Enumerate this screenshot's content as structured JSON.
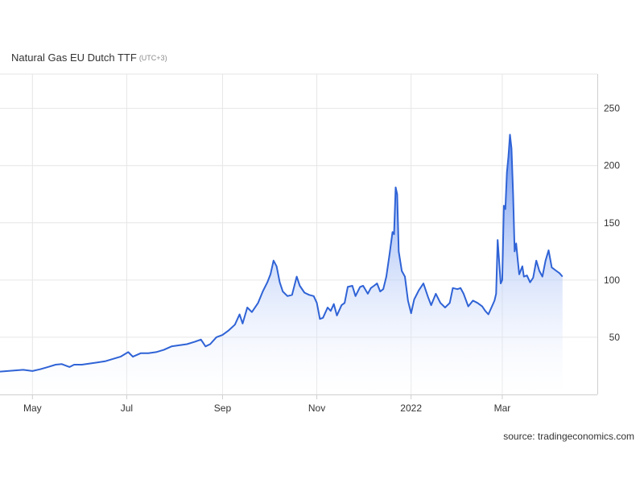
{
  "header": {
    "title": "Natural Gas EU Dutch TTF",
    "timezone": "(UTC+3)"
  },
  "footer": {
    "source": "source: tradingeconomics.com"
  },
  "colors": {
    "line": "#2f63d6",
    "fill_top": "#5b88ee",
    "fill_bottom": "#ffffff",
    "grid": "#e6e6e6"
  },
  "chart_data": {
    "type": "area",
    "title": "Natural Gas EU Dutch TTF",
    "xlabel": "",
    "ylabel": "",
    "ylim": [
      0,
      280
    ],
    "y_ticks": [
      50,
      100,
      150,
      200,
      250
    ],
    "x_ticks": [
      "May",
      "Jul",
      "Sep",
      "Nov",
      "2022",
      "Mar"
    ],
    "x_tick_dates": [
      "2021-05-01",
      "2021-07-01",
      "2021-09-01",
      "2021-11-01",
      "2022-01-01",
      "2022-03-01"
    ],
    "xlim": [
      "2021-04-10",
      "2022-04-19"
    ],
    "grid": true,
    "series": [
      {
        "points": [
          [
            "2021-04-10",
            20
          ],
          [
            "2021-04-20",
            21
          ],
          [
            "2021-04-25",
            21.5
          ],
          [
            "2021-05-01",
            20.5
          ],
          [
            "2021-05-06",
            22
          ],
          [
            "2021-05-11",
            24
          ],
          [
            "2021-05-16",
            26
          ],
          [
            "2021-05-20",
            26.5
          ],
          [
            "2021-05-25",
            24
          ],
          [
            "2021-05-28",
            26
          ],
          [
            "2021-06-02",
            26
          ],
          [
            "2021-06-07",
            27
          ],
          [
            "2021-06-12",
            28
          ],
          [
            "2021-06-17",
            29
          ],
          [
            "2021-06-22",
            31
          ],
          [
            "2021-06-27",
            33
          ],
          [
            "2021-07-02",
            37
          ],
          [
            "2021-07-05",
            33
          ],
          [
            "2021-07-10",
            36
          ],
          [
            "2021-07-15",
            36
          ],
          [
            "2021-07-20",
            37
          ],
          [
            "2021-07-25",
            39
          ],
          [
            "2021-07-30",
            42
          ],
          [
            "2021-08-04",
            43
          ],
          [
            "2021-08-09",
            44
          ],
          [
            "2021-08-14",
            46
          ],
          [
            "2021-08-18",
            48
          ],
          [
            "2021-08-21",
            42
          ],
          [
            "2021-08-24",
            44
          ],
          [
            "2021-08-28",
            50
          ],
          [
            "2021-09-01",
            52
          ],
          [
            "2021-09-05",
            56
          ],
          [
            "2021-09-09",
            61
          ],
          [
            "2021-09-12",
            70
          ],
          [
            "2021-09-14",
            62
          ],
          [
            "2021-09-17",
            76
          ],
          [
            "2021-09-20",
            72
          ],
          [
            "2021-09-24",
            80
          ],
          [
            "2021-09-27",
            90
          ],
          [
            "2021-09-30",
            98
          ],
          [
            "2021-10-02",
            105
          ],
          [
            "2021-10-04",
            117
          ],
          [
            "2021-10-06",
            112
          ],
          [
            "2021-10-08",
            98
          ],
          [
            "2021-10-10",
            90
          ],
          [
            "2021-10-13",
            86
          ],
          [
            "2021-10-16",
            87
          ],
          [
            "2021-10-19",
            103
          ],
          [
            "2021-10-21",
            95
          ],
          [
            "2021-10-24",
            89
          ],
          [
            "2021-10-27",
            87
          ],
          [
            "2021-10-30",
            86
          ],
          [
            "2021-11-01",
            80
          ],
          [
            "2021-11-03",
            66
          ],
          [
            "2021-11-05",
            67
          ],
          [
            "2021-11-08",
            76
          ],
          [
            "2021-11-10",
            73
          ],
          [
            "2021-11-12",
            79
          ],
          [
            "2021-11-14",
            69
          ],
          [
            "2021-11-17",
            78
          ],
          [
            "2021-11-19",
            80
          ],
          [
            "2021-11-21",
            94
          ],
          [
            "2021-11-24",
            95
          ],
          [
            "2021-11-26",
            86
          ],
          [
            "2021-11-29",
            94
          ],
          [
            "2021-12-01",
            95
          ],
          [
            "2021-12-04",
            88
          ],
          [
            "2021-12-06",
            93
          ],
          [
            "2021-12-08",
            95
          ],
          [
            "2021-12-10",
            97
          ],
          [
            "2021-12-12",
            90
          ],
          [
            "2021-12-14",
            92
          ],
          [
            "2021-12-16",
            103
          ],
          [
            "2021-12-18",
            122
          ],
          [
            "2021-12-20",
            142
          ],
          [
            "2021-12-21",
            140
          ],
          [
            "2021-12-22",
            181
          ],
          [
            "2021-12-23",
            175
          ],
          [
            "2021-12-24",
            125
          ],
          [
            "2021-12-26",
            108
          ],
          [
            "2021-12-28",
            103
          ],
          [
            "2021-12-30",
            82
          ],
          [
            "2022-01-01",
            71
          ],
          [
            "2022-01-03",
            83
          ],
          [
            "2022-01-06",
            91
          ],
          [
            "2022-01-09",
            97
          ],
          [
            "2022-01-12",
            85
          ],
          [
            "2022-01-14",
            78
          ],
          [
            "2022-01-17",
            88
          ],
          [
            "2022-01-20",
            80
          ],
          [
            "2022-01-23",
            76
          ],
          [
            "2022-01-26",
            80
          ],
          [
            "2022-01-28",
            93
          ],
          [
            "2022-01-31",
            92
          ],
          [
            "2022-02-02",
            93
          ],
          [
            "2022-02-04",
            88
          ],
          [
            "2022-02-07",
            77
          ],
          [
            "2022-02-10",
            82
          ],
          [
            "2022-02-13",
            80
          ],
          [
            "2022-02-16",
            77
          ],
          [
            "2022-02-18",
            73
          ],
          [
            "2022-02-20",
            70
          ],
          [
            "2022-02-22",
            76
          ],
          [
            "2022-02-24",
            82
          ],
          [
            "2022-02-25",
            88
          ],
          [
            "2022-02-26",
            135
          ],
          [
            "2022-02-28",
            97
          ],
          [
            "2022-03-01",
            100
          ],
          [
            "2022-03-02",
            165
          ],
          [
            "2022-03-03",
            162
          ],
          [
            "2022-03-04",
            194
          ],
          [
            "2022-03-05",
            208
          ],
          [
            "2022-03-06",
            227
          ],
          [
            "2022-03-07",
            215
          ],
          [
            "2022-03-08",
            175
          ],
          [
            "2022-03-09",
            125
          ],
          [
            "2022-03-10",
            132
          ],
          [
            "2022-03-11",
            118
          ],
          [
            "2022-03-12",
            105
          ],
          [
            "2022-03-14",
            112
          ],
          [
            "2022-03-15",
            103
          ],
          [
            "2022-03-17",
            104
          ],
          [
            "2022-03-19",
            98
          ],
          [
            "2022-03-21",
            102
          ],
          [
            "2022-03-23",
            117
          ],
          [
            "2022-03-25",
            108
          ],
          [
            "2022-03-27",
            103
          ],
          [
            "2022-03-29",
            117
          ],
          [
            "2022-03-31",
            126
          ],
          [
            "2022-04-02",
            111
          ],
          [
            "2022-04-05",
            108
          ],
          [
            "2022-04-07",
            106
          ],
          [
            "2022-04-09",
            103
          ]
        ]
      }
    ]
  }
}
